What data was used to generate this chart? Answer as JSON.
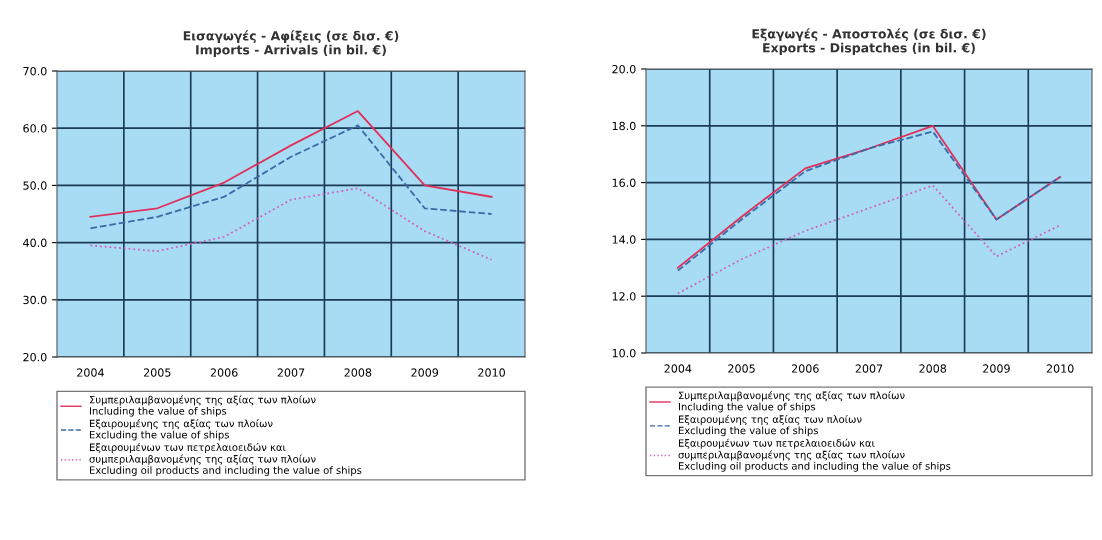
{
  "chart_data": [
    {
      "type": "line",
      "title": "Εισαγωγές - Αφίξεις (σε δισ. €)\nImports - Arrivals (in bil. €)",
      "categories": [
        "2004",
        "2005",
        "2006",
        "2007",
        "2008",
        "2009",
        "2010"
      ],
      "ylim": [
        20,
        70
      ],
      "yticks": [
        {
          "value": 20,
          "label": "20.0"
        },
        {
          "value": 30,
          "label": "30.0"
        },
        {
          "value": 40,
          "label": "40.0"
        },
        {
          "value": 50,
          "label": "50.0"
        },
        {
          "value": 60,
          "label": "60.0"
        },
        {
          "value": 70,
          "label": "70.0"
        }
      ],
      "grid": true,
      "legend": "bottom",
      "marker": "none",
      "series": [
        {
          "name": "Συμπεριλαμβανομένης της αξίας των πλοίων\nIncluding the value of ships",
          "color": "#e0305a",
          "line_style": "solid",
          "values": [
            44.5,
            46,
            50.5,
            57,
            63,
            50,
            48
          ]
        },
        {
          "name": "Εξαιρουμένης της αξίας των πλοίων\nExcluding the value of ships",
          "color": "#3a6aa8",
          "line_style": "dashed",
          "values": [
            42.5,
            44.5,
            48,
            55,
            60.5,
            46,
            45
          ]
        },
        {
          "name": "Εξαιρουμένων των πετρελαιοειδών και\nσυμπεριλαμβανομένης της αξίας των πλοίων\nExcluding oil products and including the value of ships",
          "color": "#d060c0",
          "line_style": "dotted",
          "values": [
            39.5,
            38.5,
            41,
            47.5,
            49.5,
            42,
            37
          ]
        }
      ]
    },
    {
      "type": "line",
      "title": "Εξαγωγές - Αποστολές (σε δισ. €)\nExports - Dispatches (in bil. €)",
      "categories": [
        "2004",
        "2005",
        "2006",
        "2007",
        "2008",
        "2009",
        "2010"
      ],
      "ylim": [
        10,
        20
      ],
      "yticks": [
        {
          "value": 10,
          "label": "10.0"
        },
        {
          "value": 12,
          "label": "12.0"
        },
        {
          "value": 14,
          "label": "14.0"
        },
        {
          "value": 16,
          "label": "16.0"
        },
        {
          "value": 18,
          "label": "18.0"
        },
        {
          "value": 20,
          "label": "20.0"
        }
      ],
      "grid": true,
      "legend": "bottom",
      "marker": "none",
      "series": [
        {
          "name": "Συμπεριλαμβανομένης της αξίας των πλοίων\nIncluding the value of ships",
          "color": "#e0305a",
          "line_style": "solid",
          "values": [
            13.0,
            14.8,
            16.5,
            17.2,
            18.0,
            14.7,
            16.2
          ]
        },
        {
          "name": "Εξαιρουμένης της αξίας των πλοίων\nExcluding the value of ships",
          "color": "#3a6aa8",
          "line_style": "dashed",
          "values": [
            12.9,
            14.7,
            16.4,
            17.2,
            17.8,
            14.7,
            16.2
          ]
        },
        {
          "name": "Εξαιρουμένων των πετρελαιοειδών και\nσυμπεριλαμβανομένης της αξίας των πλοίων\nExcluding oil products and including the value of ships",
          "color": "#d060c0",
          "line_style": "dotted",
          "values": [
            12.1,
            13.3,
            14.3,
            15.1,
            15.9,
            13.4,
            14.5
          ]
        }
      ]
    }
  ]
}
